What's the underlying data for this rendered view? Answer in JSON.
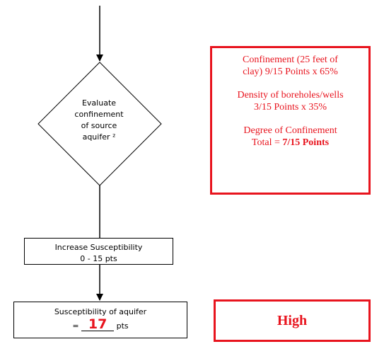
{
  "flow": {
    "decision": [
      "Evaluate",
      "confinement",
      "of source",
      "aquifer ²"
    ],
    "increase_box": {
      "line1": "Increase Susceptibility",
      "line2": "0 - 15 pts"
    },
    "susceptibility_box": {
      "line1": "Susceptibility of aquifer",
      "prefix": "=",
      "value": "17",
      "suffix": "pts"
    }
  },
  "info_box": {
    "confinement_line1": "Confinement (25 feet of",
    "confinement_line2": "clay) 9/15 Points x 65%",
    "density_line1": "Density of boreholes/wells",
    "density_line2": "3/15 Points x 35%",
    "degree_line1": "Degree of Confinement",
    "degree_total_prefix": "Total =",
    "degree_total_value": "7/15 Points"
  },
  "rating_box": {
    "label": "High"
  },
  "colors": {
    "accent_red": "#e8141e",
    "line": "#000000"
  }
}
